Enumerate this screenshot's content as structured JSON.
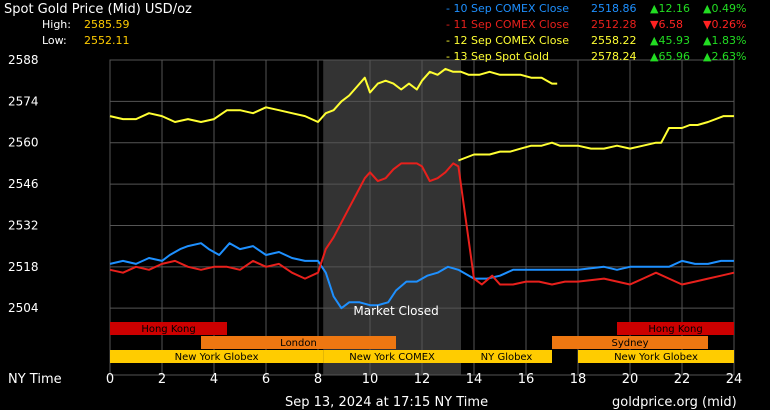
{
  "header": {
    "title": "Spot Gold Price (Mid) USD/oz",
    "high_label": "High:",
    "high_value": "2585.59",
    "low_label": "Low:",
    "low_value": "2552.11"
  },
  "legend": [
    {
      "label": "- 10 Sep COMEX Close",
      "price": "2518.86",
      "change": "12.16",
      "pct": "0.49%",
      "direction": "up",
      "color": "#1e90ff"
    },
    {
      "label": "- 11 Sep COMEX Close",
      "price": "2512.28",
      "change": "6.58",
      "pct": "0.26%",
      "direction": "down",
      "color": "#e8201c"
    },
    {
      "label": "- 12 Sep COMEX Close",
      "price": "2558.22",
      "change": "45.93",
      "pct": "1.83%",
      "direction": "up",
      "color": "#ffff33"
    },
    {
      "label": "- 13 Sep Spot Gold",
      "price": "2578.24",
      "change": "65.96",
      "pct": "2.63%",
      "direction": "up",
      "color": "#ffff33"
    }
  ],
  "colors": {
    "up": "#22dd22",
    "down": "#ff2222",
    "grid": "#555555",
    "closed_shade": "#333333",
    "text": "#ffffff"
  },
  "market_closed_label": "Market Closed",
  "sessions": [
    {
      "name": "Hong Kong",
      "start": 0,
      "end": 4.5,
      "row": 0,
      "color": "#cc0000"
    },
    {
      "name": "Hong Kong",
      "start": 19.5,
      "end": 24,
      "row": 0,
      "color": "#cc0000"
    },
    {
      "name": "London",
      "start": 3.5,
      "end": 11,
      "row": 1,
      "color": "#ee7711"
    },
    {
      "name": "Sydney",
      "start": 17,
      "end": 23,
      "row": 1,
      "color": "#ee7711"
    },
    {
      "name": "New York Globex",
      "start": 0,
      "end": 8.2,
      "row": 2,
      "color": "#ffcc00"
    },
    {
      "name": "New York COMEX",
      "start": 8.2,
      "end": 13.5,
      "row": 2,
      "color": "#ffcc00"
    },
    {
      "name": "NY Globex",
      "start": 13.5,
      "end": 17,
      "row": 2,
      "color": "#ffcc00"
    },
    {
      "name": "New York Globex",
      "start": 18,
      "end": 24,
      "row": 2,
      "color": "#ffcc00"
    }
  ],
  "footer": {
    "timestamp": "Sep 13, 2024 at 17:15 NY Time",
    "source": "goldprice.org (mid)"
  },
  "chart_data": {
    "type": "line",
    "xlabel": "NY Time",
    "ylabel": "",
    "xlim": [
      0,
      24
    ],
    "ylim": [
      2500,
      2588
    ],
    "x_ticks": [
      0,
      2,
      4,
      6,
      8,
      10,
      12,
      14,
      16,
      18,
      20,
      22,
      24
    ],
    "y_ticks": [
      2504,
      2518,
      2532,
      2546,
      2560,
      2574,
      2588
    ],
    "grid": true,
    "market_closed": [
      8.2,
      13.5
    ],
    "series": [
      {
        "name": "10 Sep COMEX Close",
        "color": "#1e90ff",
        "x": [
          0,
          0.5,
          1,
          1.5,
          2,
          2.3,
          2.7,
          3,
          3.5,
          3.8,
          4.2,
          4.6,
          5,
          5.5,
          6,
          6.5,
          7,
          7.5,
          8,
          8.3,
          8.6,
          8.9,
          9.2,
          9.6,
          10,
          10.3,
          10.7,
          11,
          11.4,
          11.8,
          12.2,
          12.6,
          13,
          13.4,
          14,
          14.5,
          15,
          15.5,
          16,
          17,
          18,
          19,
          19.5,
          20,
          20.5,
          21,
          21.5,
          22,
          22.5,
          23,
          23.5,
          24
        ],
        "y": [
          2519,
          2520,
          2519,
          2521,
          2520,
          2522,
          2524,
          2525,
          2526,
          2524,
          2522,
          2526,
          2524,
          2525,
          2522,
          2523,
          2521,
          2520,
          2520,
          2516,
          2508,
          2504,
          2506,
          2506,
          2505,
          2505,
          2506,
          2510,
          2513,
          2513,
          2515,
          2516,
          2518,
          2517,
          2514,
          2514,
          2515,
          2517,
          2517,
          2517,
          2517,
          2518,
          2517,
          2518,
          2518,
          2518,
          2518,
          2520,
          2519,
          2519,
          2520,
          2520
        ]
      },
      {
        "name": "11 Sep COMEX Close",
        "color": "#e8201c",
        "x": [
          0,
          0.5,
          1,
          1.5,
          2,
          2.5,
          3,
          3.5,
          4,
          4.5,
          5,
          5.5,
          6,
          6.5,
          7,
          7.5,
          8,
          8.3,
          8.6,
          8.9,
          9.2,
          9.5,
          9.8,
          10,
          10.3,
          10.6,
          10.9,
          11.2,
          11.5,
          11.8,
          12,
          12.3,
          12.6,
          12.9,
          13.2,
          13.4,
          14,
          14.3,
          14.7,
          15,
          15.5,
          16,
          16.5,
          17,
          17.5,
          18,
          19,
          20,
          20.5,
          21,
          21.5,
          22,
          22.5,
          23,
          23.5,
          24
        ],
        "y": [
          2517,
          2516,
          2518,
          2517,
          2519,
          2520,
          2518,
          2517,
          2518,
          2518,
          2517,
          2520,
          2518,
          2519,
          2516,
          2514,
          2516,
          2524,
          2528,
          2533,
          2538,
          2543,
          2548,
          2550,
          2547,
          2548,
          2551,
          2553,
          2553,
          2553,
          2552,
          2547,
          2548,
          2550,
          2553,
          2552,
          2514,
          2512,
          2515,
          2512,
          2512,
          2513,
          2513,
          2512,
          2513,
          2513,
          2514,
          2512,
          2514,
          2516,
          2514,
          2512,
          2513,
          2514,
          2515,
          2516
        ]
      },
      {
        "name": "12 Sep COMEX Close",
        "color": "#ffff33",
        "x": [
          13.4,
          13.7,
          14,
          14.3,
          14.6,
          15,
          15.4,
          15.8,
          16.2,
          16.6,
          17,
          17.3,
          17.6,
          18,
          18.5,
          19,
          19.5,
          20,
          20.5,
          21,
          21.2,
          21.5,
          21.8,
          22,
          22.3,
          22.6,
          23,
          23.3,
          23.6,
          24
        ],
        "y": [
          2554,
          2555,
          2556,
          2556,
          2556,
          2557,
          2557,
          2558,
          2559,
          2559,
          2560,
          2559,
          2559,
          2559,
          2558,
          2558,
          2559,
          2558,
          2559,
          2560,
          2560,
          2565,
          2565,
          2565,
          2566,
          2566,
          2567,
          2568,
          2569,
          2569
        ]
      },
      {
        "name": "13 Sep Spot Gold",
        "color": "#ffff33",
        "x": [
          0,
          0.5,
          1,
          1.5,
          2,
          2.5,
          3,
          3.5,
          4,
          4.5,
          5,
          5.5,
          6,
          6.5,
          7,
          7.5,
          8,
          8.3,
          8.6,
          8.9,
          9.2,
          9.5,
          9.8,
          10,
          10.3,
          10.6,
          10.9,
          11.2,
          11.5,
          11.8,
          12,
          12.3,
          12.6,
          12.9,
          13.2,
          13.5,
          13.8,
          14.2,
          14.6,
          15,
          15.4,
          15.8,
          16.2,
          16.6,
          17,
          17.2
        ],
        "y": [
          2569,
          2568,
          2568,
          2570,
          2569,
          2567,
          2568,
          2567,
          2568,
          2571,
          2571,
          2570,
          2572,
          2571,
          2570,
          2569,
          2567,
          2570,
          2571,
          2574,
          2576,
          2579,
          2582,
          2577,
          2580,
          2581,
          2580,
          2578,
          2580,
          2578,
          2581,
          2584,
          2583,
          2585,
          2584,
          2584,
          2583,
          2583,
          2584,
          2583,
          2583,
          2583,
          2582,
          2582,
          2580,
          2580
        ]
      }
    ]
  }
}
